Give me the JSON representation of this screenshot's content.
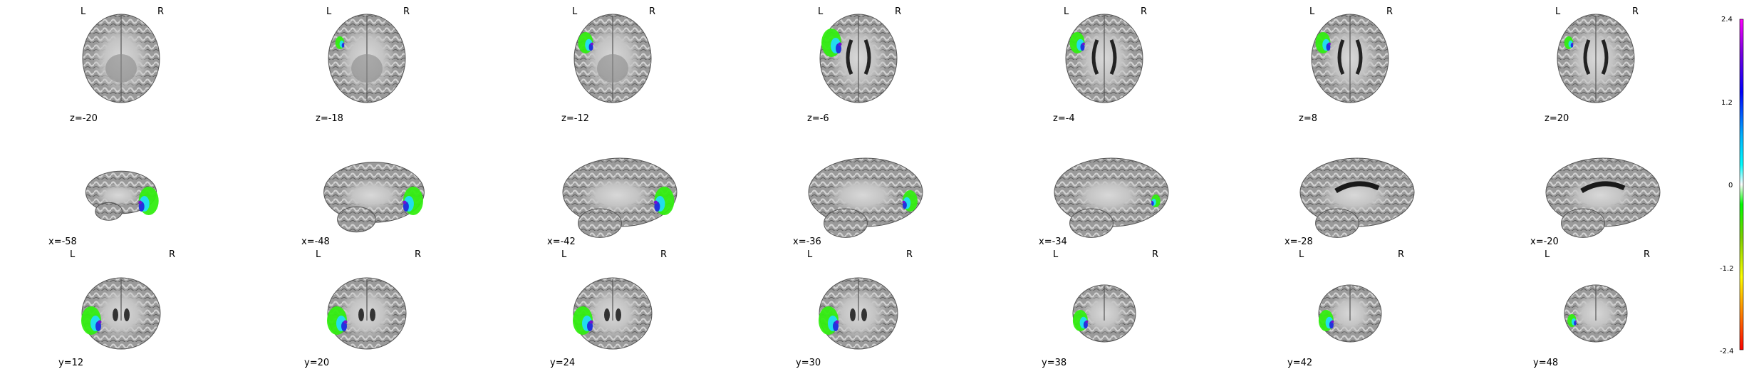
{
  "axial_row": {
    "left_label": "L",
    "right_label": "R",
    "cuts": [
      {
        "label": "z=-20",
        "blob": 0
      },
      {
        "label": "z=-18",
        "blob": 1
      },
      {
        "label": "z=-12",
        "blob": 2
      },
      {
        "label": "z=-6",
        "blob": 3
      },
      {
        "label": "z=-4",
        "blob": 2
      },
      {
        "label": "z=8",
        "blob": 2
      },
      {
        "label": "z=20",
        "blob": 1
      }
    ]
  },
  "sagittal_row": {
    "cuts": [
      {
        "label": "x=-58",
        "blob": 3
      },
      {
        "label": "x=-48",
        "blob": 3
      },
      {
        "label": "x=-42",
        "blob": 3
      },
      {
        "label": "x=-36",
        "blob": 2
      },
      {
        "label": "x=-34",
        "blob": 1
      },
      {
        "label": "x=-28",
        "blob": 0
      },
      {
        "label": "x=-20",
        "blob": 0
      }
    ]
  },
  "coronal_row": {
    "left_label": "L",
    "right_label": "R",
    "cuts": [
      {
        "label": "y=12",
        "blob": 3
      },
      {
        "label": "y=20",
        "blob": 3
      },
      {
        "label": "y=24",
        "blob": 3
      },
      {
        "label": "y=30",
        "blob": 3
      },
      {
        "label": "y=38",
        "blob": 2
      },
      {
        "label": "y=42",
        "blob": 2
      },
      {
        "label": "y=48",
        "blob": 1
      }
    ]
  },
  "colorbar": {
    "ticks": [
      "2.4",
      "1.2",
      "0",
      "-1.2",
      "-2.4"
    ],
    "colors": [
      "#ff00ff",
      "#7a00e0",
      "#0000ff",
      "#00b0ff",
      "#00ffff",
      "#ffffff",
      "#00ff00",
      "#7cd000",
      "#ffff00",
      "#ff8000",
      "#ff0000"
    ]
  },
  "overlay_colors": {
    "green": "#33ee11",
    "cyan": "#22ddee",
    "blue": "#2233dd",
    "violet": "#7711cc"
  }
}
